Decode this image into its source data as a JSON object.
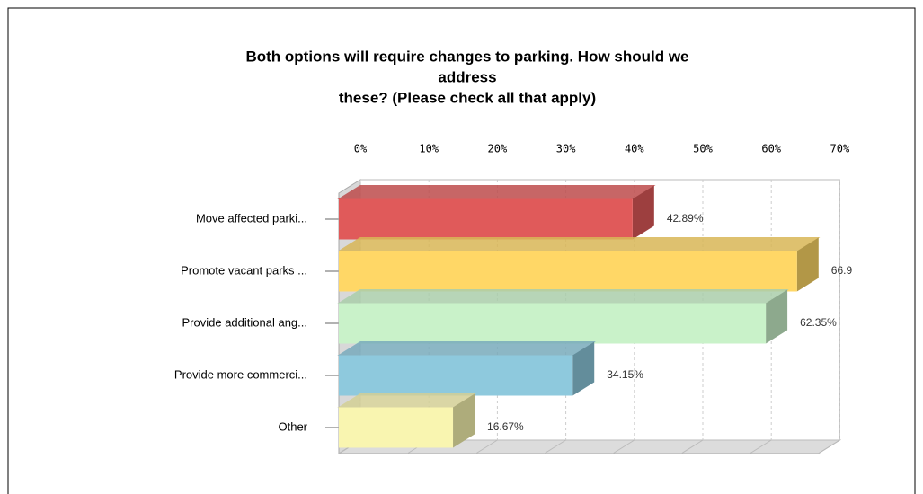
{
  "chart_data": {
    "type": "bar3d",
    "orientation": "horizontal",
    "title": [
      "Both options will require changes to parking.  How should we",
      "address",
      "these? (Please check all that apply)"
    ],
    "categories": [
      "Move affected parki...",
      "Promote vacant parks ...",
      "Provide additional ang...",
      "Provide more commerci...",
      "Other"
    ],
    "values": [
      42.89,
      66.9,
      62.35,
      34.15,
      16.67
    ],
    "value_labels": [
      "42.89%",
      "66.9",
      "62.35%",
      "34.15%",
      "16.67%"
    ],
    "colors": [
      "#e05a5a",
      "#ffd766",
      "#c9f2c9",
      "#8ec9dd",
      "#f9f5b0"
    ],
    "xlim": [
      0,
      70
    ],
    "xticks": [
      {
        "value": 0,
        "label": "0%"
      },
      {
        "value": 10,
        "label": "10%"
      },
      {
        "value": 20,
        "label": "20%"
      },
      {
        "value": 30,
        "label": "30%"
      },
      {
        "value": 40,
        "label": "40%"
      },
      {
        "value": 50,
        "label": "50%"
      },
      {
        "value": 60,
        "label": "60%"
      },
      {
        "value": 70,
        "label": "70%"
      }
    ],
    "grid": true
  }
}
